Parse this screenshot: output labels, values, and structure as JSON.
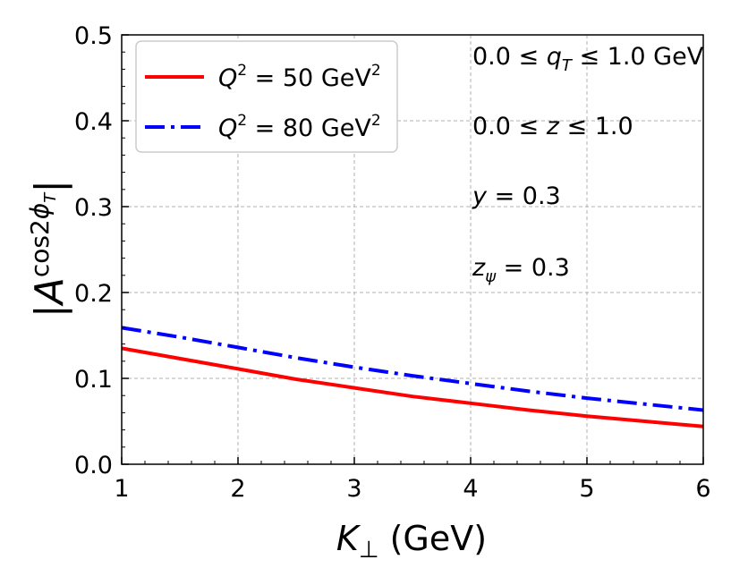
{
  "chart_data": {
    "type": "line",
    "xlabel": "K⊥ (GeV)",
    "ylabel": "|A^cos2φT|",
    "xlim": [
      1,
      6
    ],
    "ylim": [
      0,
      0.5
    ],
    "xticks": [
      "1",
      "2",
      "3",
      "4",
      "5",
      "6"
    ],
    "yticks": [
      "0.0",
      "0.1",
      "0.2",
      "0.3",
      "0.4",
      "0.5"
    ],
    "grid": true,
    "legend_position": "upper-left",
    "series": [
      {
        "name": "Q² = 50 GeV²",
        "color": "#ff0000",
        "line_style": "solid",
        "x": [
          1,
          1.5,
          2,
          2.5,
          3,
          3.5,
          4,
          4.5,
          5,
          5.5,
          6
        ],
        "y": [
          0.135,
          0.123,
          0.111,
          0.099,
          0.089,
          0.079,
          0.071,
          0.063,
          0.056,
          0.05,
          0.044
        ]
      },
      {
        "name": "Q² = 80 GeV²",
        "color": "#0000ff",
        "line_style": "dashdot",
        "x": [
          1,
          1.5,
          2,
          2.5,
          3,
          3.5,
          4,
          4.5,
          5,
          5.5,
          6
        ],
        "y": [
          0.159,
          0.148,
          0.136,
          0.124,
          0.113,
          0.103,
          0.094,
          0.085,
          0.077,
          0.07,
          0.063
        ]
      }
    ],
    "annotations": [
      "0.0 ≤ qT ≤ 1.0 GeV",
      "0.0 ≤ z ≤ 1.0",
      "y = 0.3",
      "zψ = 0.3"
    ]
  }
}
